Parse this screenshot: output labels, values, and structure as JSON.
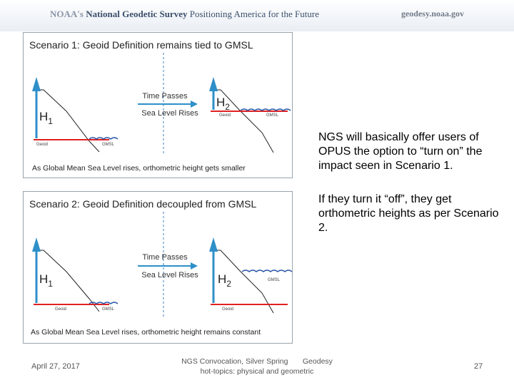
{
  "header": {
    "org_prefix": "NOAA's",
    "org_name": "National Geodetic Survey",
    "tagline": "Positioning America for the Future",
    "site": "geodesy.noaa.gov"
  },
  "scenario1": {
    "title": "Scenario 1:  Geoid Definition remains tied to GMSL",
    "time_passes": "Time Passes",
    "sea_level_rises": "Sea Level Rises",
    "h1": "H",
    "h1_sub": "1",
    "h2": "H",
    "h2_sub": "2",
    "geoid_left": "Geoid",
    "gmsl_left": "GMSL",
    "geoid_right": "Geoid",
    "gmsl_right": "GMSL",
    "caption": "As Global Mean Sea Level rises, orthometric height gets smaller"
  },
  "scenario2": {
    "title": "Scenario 2:  Geoid Definition decoupled from GMSL",
    "time_passes": "Time Passes",
    "sea_level_rises": "Sea Level Rises",
    "h1": "H",
    "h1_sub": "1",
    "h2": "H",
    "h2_sub": "2",
    "geoid_left": "Geoid",
    "gmsl_left": "GMSL",
    "geoid_right": "Geoid",
    "gmsl_right": "GMSL",
    "caption": "As Global Mean Sea Level rises, orthometric height remains constant"
  },
  "side": {
    "para1": "NGS will basically offer users of OPUS the option to “turn on” the impact seen in Scenario 1.",
    "para2": "If they turn it “off”, they get orthometric heights as per Scenario 2."
  },
  "footer": {
    "date": "April 27, 2017",
    "center_line1": "NGS Convocation, Silver Spring       Geodesy",
    "center_line2": "hot-topics: physical and geometric",
    "page": "27"
  },
  "colors": {
    "geoid_line": "#e02020",
    "gmsl_wave": "#2f5aa8",
    "arrow": "#2e8fc9",
    "divider": "#3f7fc0"
  }
}
